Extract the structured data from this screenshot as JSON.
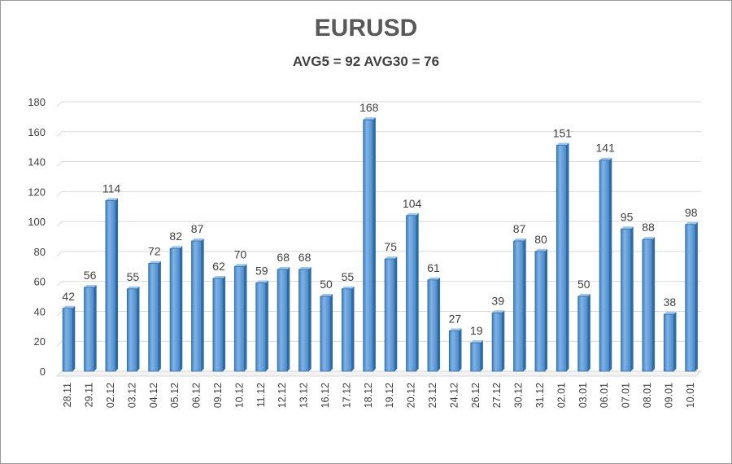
{
  "chart_data": {
    "type": "bar",
    "title": "EURUSD",
    "subtitle": "AVG5 = 92 AVG30 = 76",
    "xlabel": "",
    "ylabel": "",
    "ylim": [
      0,
      180
    ],
    "yticks": [
      0,
      20,
      40,
      60,
      80,
      100,
      120,
      140,
      160,
      180
    ],
    "grid": true,
    "legend": "none",
    "bar_color": "#5b9bd5",
    "bar_edge_color": "#2e6ca4",
    "categories": [
      "28.11",
      "29.11",
      "02.12",
      "03.12",
      "04.12",
      "05.12",
      "06.12",
      "09.12",
      "10.12",
      "11.12",
      "12.12",
      "13.12",
      "16.12",
      "17.12",
      "18.12",
      "19.12",
      "20.12",
      "23.12",
      "24.12",
      "26.12",
      "27.12",
      "30.12",
      "31.12",
      "02.01",
      "03.01",
      "06.01",
      "07.01",
      "08.01",
      "09.01",
      "10.01"
    ],
    "values": [
      42,
      56,
      114,
      55,
      72,
      82,
      87,
      62,
      70,
      59,
      68,
      68,
      50,
      55,
      168,
      75,
      104,
      61,
      27,
      19,
      39,
      87,
      80,
      151,
      50,
      141,
      95,
      88,
      38,
      98
    ]
  }
}
